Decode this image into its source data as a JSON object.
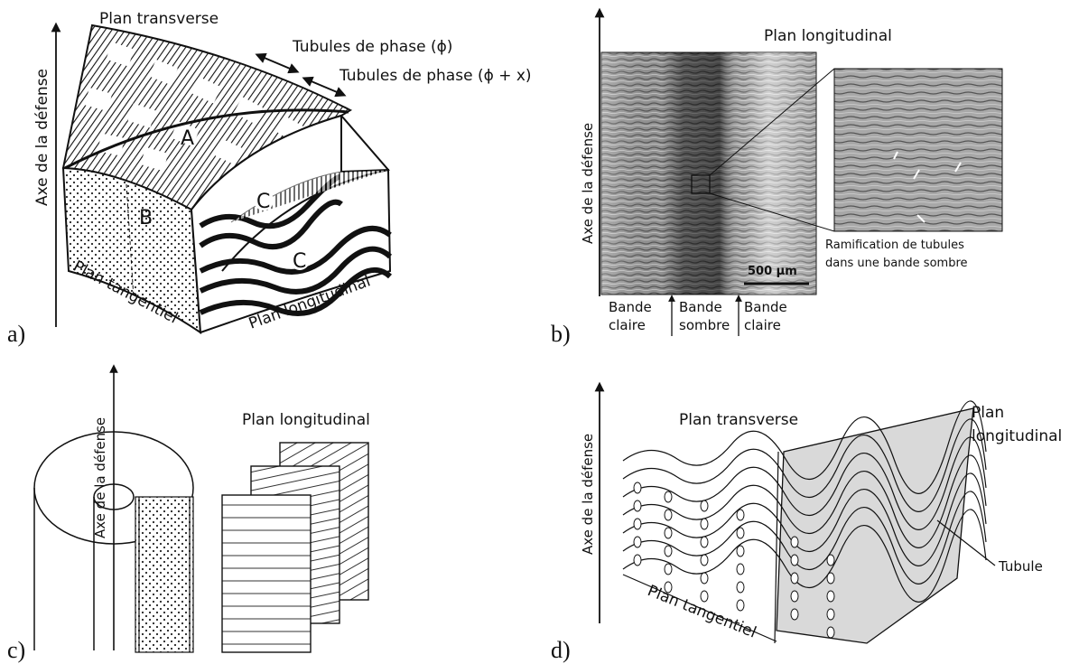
{
  "panels": {
    "a": {
      "letter": "a)",
      "axis_label": "Axe de la défense",
      "plane_transverse": "Plan transverse",
      "plane_tangential": "Plan tangentiel",
      "plane_longitudinal": "Plan longitudinal",
      "tubules_phase": "Tubules de phase (ϕ)",
      "tubules_phase_x": "Tubules de phase (ϕ + x)",
      "region_a": "A",
      "region_b": "B",
      "region_c": "C"
    },
    "b": {
      "letter": "b)",
      "axis_label": "Axe de la défense",
      "plane_longitudinal": "Plan longitudinal",
      "scale_bar": "500 µm",
      "band_light_1": [
        "Bande",
        "claire"
      ],
      "band_dark": [
        "Bande",
        "sombre"
      ],
      "band_light_2": [
        "Bande",
        "claire"
      ],
      "inset_caption": [
        "Ramification de tubules",
        "dans une bande sombre"
      ]
    },
    "c": {
      "letter": "c)",
      "axis_label": "Axe de la défense",
      "plane_longitudinal": "Plan longitudinal"
    },
    "d": {
      "letter": "d)",
      "axis_label": "Axe de la défense",
      "plane_transverse": "Plan transverse",
      "plane_longitudinal": [
        "Plan",
        "longitudinal"
      ],
      "plane_tangential": "Plan tangentiel",
      "tubule": "Tubule"
    }
  }
}
